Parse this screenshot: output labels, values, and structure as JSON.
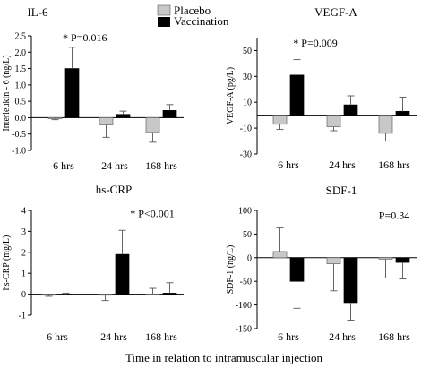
{
  "figure": {
    "xlabel": "Time in relation to intramuscular injection",
    "legend": [
      {
        "name": "Placebo",
        "color": "#c8c8c8"
      },
      {
        "name": "Vaccination",
        "color": "#000000"
      }
    ],
    "legend_position": "top-center"
  },
  "chart_data": [
    {
      "type": "bar",
      "title": "IL-6",
      "ylabel": "Interleukin - 6 (ng/L)",
      "ylim": [
        -1.0,
        2.5
      ],
      "yticks": [
        -1.0,
        -0.5,
        0.0,
        0.5,
        1.0,
        1.5,
        2.0,
        2.5
      ],
      "ytick_labels": [
        "-1.0",
        "-0.5",
        "0.0",
        "0.5",
        "1.0",
        "1.5",
        "2.0",
        "2.5"
      ],
      "categories": [
        "6 hrs",
        "24 hrs",
        "168 hrs"
      ],
      "series": [
        {
          "name": "Placebo",
          "values": [
            -0.03,
            -0.22,
            -0.45
          ],
          "errors": [
            0.03,
            0.38,
            0.3
          ]
        },
        {
          "name": "Vaccination",
          "values": [
            1.5,
            0.1,
            0.22
          ],
          "errors": [
            0.65,
            0.1,
            0.18
          ]
        }
      ],
      "annotation": "* P=0.016",
      "annotation_category": 0,
      "annotation_value": 2.45
    },
    {
      "type": "bar",
      "title": "VEGF-A",
      "ylabel": "VEGF-A (pg/L)",
      "ylim": [
        -30,
        60
      ],
      "yticks": [
        -30,
        -10,
        10,
        30,
        50
      ],
      "ytick_labels": [
        "-30",
        "-10",
        "10",
        "30",
        "50"
      ],
      "categories": [
        "6 hrs",
        "24 hrs",
        "168 hrs"
      ],
      "series": [
        {
          "name": "Placebo",
          "values": [
            -7,
            -9,
            -14
          ],
          "errors": [
            4,
            3,
            6
          ]
        },
        {
          "name": "Vaccination",
          "values": [
            31,
            8,
            3
          ],
          "errors": [
            12,
            7,
            11
          ]
        }
      ],
      "annotation": "* P=0.009",
      "annotation_category": 0,
      "annotation_value": 56
    },
    {
      "type": "bar",
      "title": "hs-CRP",
      "ylabel": "hs-CRP (mg/L)",
      "ylim": [
        -1,
        4
      ],
      "yticks": [
        -1,
        0,
        1,
        2,
        3,
        4
      ],
      "ytick_labels": [
        "-1",
        "0",
        "1",
        "2",
        "3",
        "4"
      ],
      "categories": [
        "6 hrs",
        "24 hrs",
        "168 hrs"
      ],
      "series": [
        {
          "name": "Placebo",
          "values": [
            -0.05,
            -0.05,
            0.0
          ],
          "errors": [
            0.05,
            0.25,
            0.28
          ]
        },
        {
          "name": "Vaccination",
          "values": [
            0.0,
            1.9,
            0.05
          ],
          "errors": [
            0.05,
            1.15,
            0.5
          ]
        }
      ],
      "annotation": "* P<0.001",
      "annotation_category": 1,
      "annotation_value": 3.85
    },
    {
      "type": "bar",
      "title": "SDF-1",
      "ylabel": "SDF-1 (ng/L)",
      "ylim": [
        -150,
        100
      ],
      "yticks": [
        -150,
        -100,
        -50,
        0,
        50,
        100
      ],
      "ytick_labels": [
        "-150",
        "-100",
        "-50",
        "0",
        "50",
        "100"
      ],
      "categories": [
        "6 hrs",
        "24 hrs",
        "168 hrs"
      ],
      "series": [
        {
          "name": "Placebo",
          "values": [
            13,
            -13,
            -3
          ],
          "errors": [
            50,
            57,
            40
          ]
        },
        {
          "name": "Vaccination",
          "values": [
            -50,
            -95,
            -10
          ],
          "errors": [
            57,
            37,
            35
          ]
        }
      ],
      "annotation": "P=0.34",
      "annotation_category": 2,
      "annotation_value": 90
    }
  ]
}
